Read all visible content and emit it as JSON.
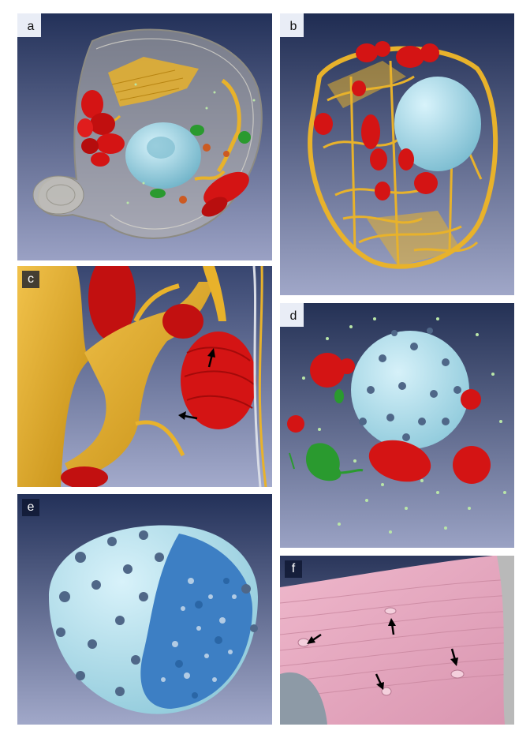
{
  "panels": [
    {
      "id": "a",
      "label": "a",
      "content": "cell-overview"
    },
    {
      "id": "b",
      "label": "b",
      "content": "network-and-organelles"
    },
    {
      "id": "c",
      "label": "c",
      "content": "closeup-contacts"
    },
    {
      "id": "d",
      "label": "d",
      "content": "nucleus-with-organelles"
    },
    {
      "id": "e",
      "label": "e",
      "content": "nucleus-cutaway"
    },
    {
      "id": "f",
      "label": "f",
      "content": "membrane-surface"
    }
  ],
  "colors": {
    "background_top": "#26335a",
    "background_bottom": "#8a93b8",
    "membrane": "#a9a8a0",
    "network": "#e8b22b",
    "mitochondria": "#d41414",
    "nucleus": "#a6dcea",
    "nuclear_pores": "#4f6788",
    "green_organelles": "#2a9a2f",
    "vesicles": "#b9e6a8",
    "surface": "#e4a6be",
    "interior": "#3d7fc4"
  },
  "icons": [
    "arrow-icon"
  ]
}
